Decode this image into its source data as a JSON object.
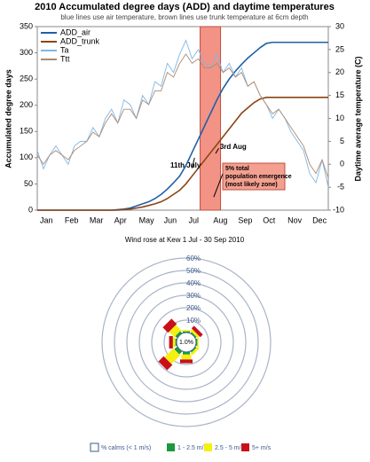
{
  "chart_data": [
    {
      "type": "line",
      "title": "2010 Accumulated degree days (ADD) and daytime temperatures",
      "subtitle": "blue lines use air temperature, brown lines use trunk temperature at 6cm depth",
      "ylabel": "Accumulated degree days",
      "y2label": "Daytime average temperature (C)",
      "categories": [
        "Jan",
        null,
        null,
        null,
        "Feb",
        null,
        null,
        null,
        "Mar",
        null,
        null,
        null,
        "Apr",
        null,
        null,
        null,
        "May",
        null,
        null,
        null,
        "Jun",
        null,
        null,
        null,
        "Jul",
        null,
        null,
        null,
        "Aug",
        null,
        null,
        null,
        "Sep",
        null,
        null,
        null,
        "Oct",
        null,
        null,
        null,
        "Nov",
        null,
        null,
        null,
        "Dec",
        null,
        null,
        null
      ],
      "ylim": [
        0,
        350
      ],
      "yticks": [
        0,
        50,
        100,
        150,
        200,
        250,
        300,
        350
      ],
      "y2lim": [
        -10,
        30
      ],
      "y2ticks": [
        -10,
        -5,
        0,
        5,
        10,
        15,
        20,
        25,
        30
      ],
      "legend": "upper left",
      "annotations": [
        "11th July",
        "3rd Aug",
        "5% total population emergence (most likely zone)"
      ],
      "series": [
        {
          "name": "ADD_air",
          "color": "#1f5fa8",
          "values": [
            0,
            0,
            0,
            0,
            0,
            0,
            0,
            0,
            0,
            0,
            0,
            0,
            0,
            1,
            2,
            4,
            8,
            12,
            16,
            22,
            30,
            40,
            52,
            65,
            85,
            110,
            135,
            160,
            185,
            210,
            232,
            250,
            265,
            278,
            290,
            300,
            310,
            318,
            320,
            320,
            320,
            320,
            320,
            320,
            320,
            320,
            320,
            320
          ]
        },
        {
          "name": "ADD_trunk",
          "color": "#8b4513",
          "values": [
            0,
            0,
            0,
            0,
            0,
            0,
            0,
            0,
            0,
            0,
            0,
            0,
            0,
            0,
            1,
            2,
            4,
            6,
            9,
            12,
            16,
            22,
            30,
            38,
            50,
            65,
            80,
            95,
            110,
            125,
            140,
            155,
            170,
            185,
            195,
            205,
            212,
            215,
            215,
            215,
            215,
            215,
            215,
            215,
            215,
            215,
            215,
            215
          ]
        },
        {
          "name": "Ta",
          "color": "#7fb7e6",
          "axis": "y2",
          "values": [
            3,
            -1,
            2,
            4,
            2,
            0,
            4,
            5,
            5,
            8,
            6,
            10,
            12,
            9,
            14,
            13,
            10,
            15,
            13,
            18,
            17,
            22,
            20,
            24,
            27,
            23,
            25,
            22,
            21,
            24,
            20,
            22,
            19,
            21,
            17,
            18,
            15,
            13,
            10,
            12,
            10,
            7,
            5,
            3,
            -2,
            -4,
            1,
            -5
          ]
        },
        {
          "name": "Ttt",
          "color": "#b08a6e",
          "axis": "y2",
          "values": [
            2,
            0,
            2,
            3,
            2,
            1,
            3,
            4,
            5,
            7,
            6,
            9,
            11,
            9,
            12,
            12,
            10,
            14,
            13,
            16,
            16,
            20,
            19,
            22,
            24,
            22,
            23,
            21,
            21,
            22,
            20,
            21,
            19,
            20,
            17,
            18,
            15,
            13,
            11,
            12,
            10,
            8,
            6,
            4,
            0,
            -2,
            1,
            -3
          ]
        }
      ]
    },
    {
      "type": "windrose",
      "title": "Wind rose at Kew 1 Jul - 30 Sep 2010",
      "rlim": [
        0,
        60
      ],
      "rticks": [
        {
          "value": 10,
          "label": "10%"
        },
        {
          "value": 20,
          "label": "20%"
        },
        {
          "value": 30,
          "label": "30%"
        },
        {
          "value": 40,
          "label": "40%"
        },
        {
          "value": 50,
          "label": "50%"
        },
        {
          "value": 60,
          "label": "60%"
        }
      ],
      "calm": {
        "value": 1.0,
        "label": "1.0%"
      },
      "calm_name": "% calms (< 1 m/s)",
      "series": [
        {
          "name": "1 - 2.5 m/s",
          "color": "#1a9a3a",
          "values": [
            1,
            1,
            1,
            1,
            2,
            3,
            1,
            2
          ]
        },
        {
          "name": "2.5 - 5 m/s",
          "color": "#f5f010",
          "values": [
            1,
            2,
            1,
            2,
            4,
            10,
            2,
            6
          ]
        },
        {
          "name": "5+ m/s",
          "color": "#c8101a",
          "values": [
            0,
            3,
            0,
            0,
            3,
            6,
            3,
            6
          ]
        }
      ]
    }
  ]
}
